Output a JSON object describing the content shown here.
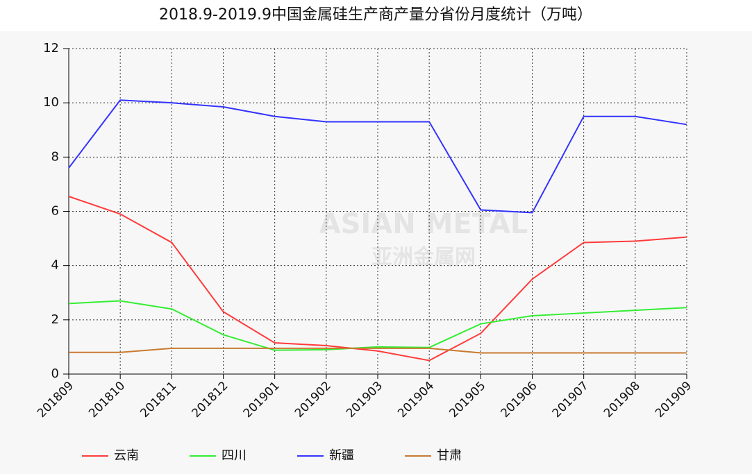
{
  "chart_data": {
    "type": "line",
    "title": "2018.9-2019.9中国金属硅生产商产量分省份月度统计（万吨）",
    "watermark": "ASIAN METAL",
    "watermark_sub": "亚洲金属网",
    "categories": [
      "201809",
      "201810",
      "201811",
      "201812",
      "201901",
      "201902",
      "201903",
      "201904",
      "201905",
      "201906",
      "201907",
      "201908",
      "201909"
    ],
    "series": [
      {
        "name": "云南",
        "color": "#ff3b3b",
        "values": [
          6.55,
          5.9,
          4.85,
          2.3,
          1.15,
          1.05,
          0.85,
          0.5,
          1.5,
          3.5,
          4.85,
          4.9,
          5.05
        ]
      },
      {
        "name": "四川",
        "color": "#33ee33",
        "values": [
          2.6,
          2.7,
          2.4,
          1.45,
          0.88,
          0.9,
          1.0,
          0.98,
          1.85,
          2.15,
          2.25,
          2.35,
          2.45
        ]
      },
      {
        "name": "新疆",
        "color": "#3333ff",
        "values": [
          7.6,
          10.1,
          10.0,
          9.85,
          9.5,
          9.3,
          9.3,
          9.3,
          6.05,
          5.95,
          9.5,
          9.5,
          9.2
        ]
      },
      {
        "name": "甘肃",
        "color": "#c87a30",
        "values": [
          0.8,
          0.8,
          0.95,
          0.95,
          0.95,
          0.95,
          0.95,
          0.95,
          0.78,
          0.78,
          0.78,
          0.78,
          0.78
        ]
      }
    ],
    "ylim": [
      0,
      12
    ],
    "yticks": [
      0,
      2,
      4,
      6,
      8,
      10,
      12
    ],
    "grid": true
  }
}
